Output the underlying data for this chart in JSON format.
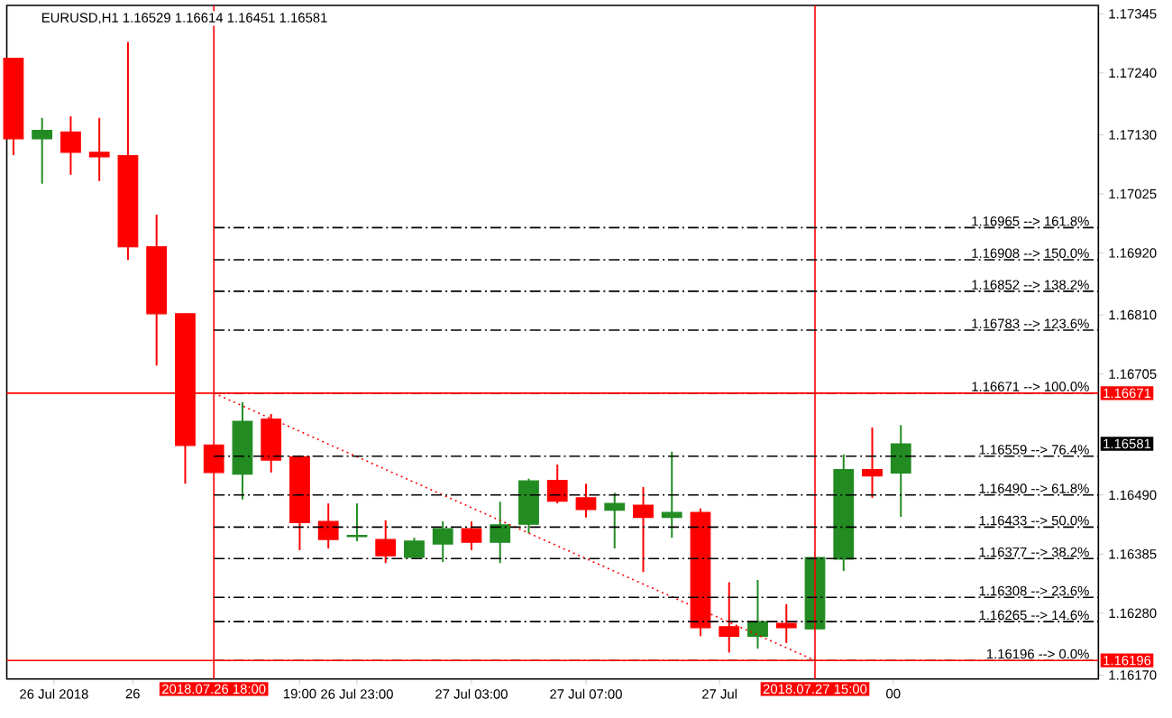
{
  "chart_data": {
    "type": "candlestick",
    "title": "EURUSD,H1  1.16529 1.16614 1.16451 1.16581",
    "x": [
      "2018-07-26T11:00",
      "2018-07-26T12:00",
      "2018-07-26T13:00",
      "2018-07-26T14:00",
      "2018-07-26T15:00",
      "2018-07-26T16:00",
      "2018-07-26T17:00",
      "2018-07-26T18:00",
      "2018-07-26T19:00",
      "2018-07-26T20:00",
      "2018-07-26T21:00",
      "2018-07-26T22:00",
      "2018-07-26T23:00",
      "2018-07-27T00:00",
      "2018-07-27T01:00",
      "2018-07-27T02:00",
      "2018-07-27T03:00",
      "2018-07-27T04:00",
      "2018-07-27T05:00",
      "2018-07-27T06:00",
      "2018-07-27T07:00",
      "2018-07-27T08:00",
      "2018-07-27T09:00",
      "2018-07-27T10:00",
      "2018-07-27T11:00",
      "2018-07-27T12:00",
      "2018-07-27T13:00",
      "2018-07-27T14:00",
      "2018-07-27T15:00",
      "2018-07-27T16:00",
      "2018-07-27T17:00",
      "2018-07-27T18:00"
    ],
    "ohlc": [
      [
        1.17266,
        1.17266,
        1.17094,
        1.17123
      ],
      [
        1.17123,
        1.1716,
        1.17043,
        1.17138
      ],
      [
        1.17135,
        1.17163,
        1.17059,
        1.17099
      ],
      [
        1.17099,
        1.1716,
        1.17048,
        1.17091
      ],
      [
        1.17093,
        1.17295,
        1.16908,
        1.16931
      ],
      [
        1.16931,
        1.16988,
        1.1672,
        1.16812
      ],
      [
        1.16812,
        1.16812,
        1.1651,
        1.16578
      ],
      [
        1.16579,
        1.16579,
        1.1653,
        1.1653
      ],
      [
        1.16527,
        1.16655,
        1.16482,
        1.16621
      ],
      [
        1.16625,
        1.16634,
        1.1653,
        1.16552
      ],
      [
        1.16558,
        1.16558,
        1.16392,
        1.16441
      ],
      [
        1.16443,
        1.16475,
        1.16395,
        1.16411
      ],
      [
        1.16416,
        1.16475,
        1.16408,
        1.16418
      ],
      [
        1.16411,
        1.16445,
        1.16369,
        1.16382
      ],
      [
        1.16379,
        1.16414,
        1.16376,
        1.16408
      ],
      [
        1.16403,
        1.16443,
        1.16371,
        1.1643
      ],
      [
        1.1643,
        1.16443,
        1.16392,
        1.16406
      ],
      [
        1.16406,
        1.16478,
        1.16369,
        1.16437
      ],
      [
        1.16438,
        1.16519,
        1.16422,
        1.16515
      ],
      [
        1.16516,
        1.16544,
        1.16475,
        1.16479
      ],
      [
        1.16485,
        1.1651,
        1.1645,
        1.16464
      ],
      [
        1.16463,
        1.16494,
        1.16395,
        1.16475
      ],
      [
        1.16472,
        1.16504,
        1.16353,
        1.1645
      ],
      [
        1.1645,
        1.16567,
        1.16414,
        1.16459
      ],
      [
        1.16459,
        1.16466,
        1.16239,
        1.16254
      ],
      [
        1.16256,
        1.16335,
        1.1621,
        1.16239
      ],
      [
        1.16239,
        1.16339,
        1.16217,
        1.16265
      ],
      [
        1.16262,
        1.16296,
        1.16227,
        1.16254
      ],
      [
        1.16252,
        1.16379,
        1.16252,
        1.16379
      ],
      [
        1.16376,
        1.16562,
        1.16355,
        1.16535
      ],
      [
        1.16535,
        1.1661,
        1.16485,
        1.16524
      ],
      [
        1.16529,
        1.16614,
        1.16451,
        1.16581
      ]
    ],
    "colors": [
      "#ff0000",
      "#228b22",
      "#ff0000",
      "#ff0000",
      "#ff0000",
      "#ff0000",
      "#ff0000",
      "#ff0000",
      "#228b22",
      "#ff0000",
      "#ff0000",
      "#ff0000",
      "#228b22",
      "#ff0000",
      "#228b22",
      "#228b22",
      "#ff0000",
      "#228b22",
      "#228b22",
      "#ff0000",
      "#ff0000",
      "#228b22",
      "#ff0000",
      "#228b22",
      "#ff0000",
      "#ff0000",
      "#228b22",
      "#ff0000",
      "#228b22",
      "#228b22",
      "#ff0000",
      "#228b22"
    ],
    "series": [
      {
        "type": "line",
        "x": [
          "2018-07-26T18:00",
          "2018-07-27T15:00"
        ],
        "values": [
          1.16671,
          1.16196
        ],
        "color": "#ff0000",
        "line_style": "dotted"
      }
    ],
    "xlim": [
      "2018-07-26T10:46",
      "2018-07-28T00:54"
    ],
    "xticks": [
      {
        "value": "2018-07-26T12:25",
        "label": "26 Jul 2018"
      },
      {
        "value": "2018-07-26T15:10",
        "label": "26"
      },
      {
        "value": "2018-07-26T21:00",
        "label": "19:00"
      },
      {
        "value": "2018-07-26T23:00",
        "label": "26 Jul 23:00"
      },
      {
        "value": "2018-07-27T03:00",
        "label": "27 Jul 03:00"
      },
      {
        "value": "2018-07-27T07:00",
        "label": "27 Jul 07:00"
      },
      {
        "value": "2018-07-27T11:40",
        "label": "27 Jul"
      },
      {
        "value": "2018-07-27T17:44",
        "label": "00"
      }
    ],
    "ylim": [
      1.16163,
      1.1736
    ],
    "yticks": [
      {
        "value": 1.1617,
        "label": "1.16170"
      },
      {
        "value": 1.1628,
        "label": "1.16280"
      },
      {
        "value": 1.16385,
        "label": "1.16385"
      },
      {
        "value": 1.1649,
        "label": "1.16490"
      },
      {
        "value": 1.16705,
        "label": "1.16705"
      },
      {
        "value": 1.1681,
        "label": "1.16810"
      },
      {
        "value": 1.1692,
        "label": "1.16920"
      },
      {
        "value": 1.17025,
        "label": "1.17025"
      },
      {
        "value": 1.1713,
        "label": "1.17130"
      },
      {
        "value": 1.1724,
        "label": "1.17240"
      },
      {
        "value": 1.17345,
        "label": "1.17345"
      }
    ],
    "ref_lines": [
      {
        "axis": "x",
        "value": "2018-07-26T18:00",
        "label": "2018.07.26 18:00",
        "color": "#ff0000",
        "line_style": "solid"
      },
      {
        "axis": "x",
        "value": "2018-07-27T15:00",
        "label": "2018.07.27 15:00",
        "color": "#ff0000",
        "line_style": "solid"
      },
      {
        "axis": "y",
        "value": 1.16671,
        "label": "1.16671 --> 100.0%",
        "color": "#000000",
        "line_style": "dashed"
      },
      {
        "axis": "y",
        "value": 1.16196,
        "label": "1.16196 --> 0.0%",
        "color": "#000000",
        "line_style": "dashed"
      },
      {
        "axis": "y",
        "value": 1.16965,
        "label": "1.16965 --> 161.8%",
        "color": "#000000",
        "line_style": "dashed"
      },
      {
        "axis": "y",
        "value": 1.16908,
        "label": "1.16908 --> 150.0%",
        "color": "#000000",
        "line_style": "dashed"
      },
      {
        "axis": "y",
        "value": 1.16852,
        "label": "1.16852 --> 138.2%",
        "color": "#000000",
        "line_style": "dashed"
      },
      {
        "axis": "y",
        "value": 1.16783,
        "label": "1.16783 --> 123.6%",
        "color": "#000000",
        "line_style": "dashed"
      },
      {
        "axis": "y",
        "value": 1.16559,
        "label": "1.16559 --> 76.4%",
        "color": "#000000",
        "line_style": "dashed"
      },
      {
        "axis": "y",
        "value": 1.1649,
        "label": "1.16490 --> 61.8%",
        "color": "#000000",
        "line_style": "dashed"
      },
      {
        "axis": "y",
        "value": 1.16433,
        "label": "1.16433 --> 50.0%",
        "color": "#000000",
        "line_style": "dashed"
      },
      {
        "axis": "y",
        "value": 1.16377,
        "label": "1.16377 --> 38.2%",
        "color": "#000000",
        "line_style": "dashed"
      },
      {
        "axis": "y",
        "value": 1.16308,
        "label": "1.16308 --> 23.6%",
        "color": "#000000",
        "line_style": "dashed"
      },
      {
        "axis": "y",
        "value": 1.16265,
        "label": "1.16265 --> 14.6%",
        "color": "#000000",
        "line_style": "dashed"
      },
      {
        "axis": "y",
        "value": 1.16671,
        "label": "1.16671",
        "color": "#ff0000",
        "line_style": "solid"
      },
      {
        "axis": "y",
        "value": 1.16196,
        "label": "1.16196",
        "color": "#ff0000",
        "line_style": "solid"
      }
    ],
    "annotations": [
      "1.16581"
    ]
  }
}
